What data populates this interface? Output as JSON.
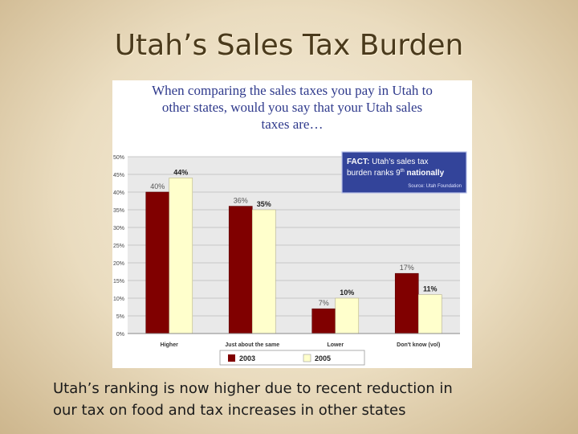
{
  "slide": {
    "title": "Utah’s Sales Tax Burden",
    "caption_lines": [
      "Utah’s ranking is now higher due to recent reduction in",
      "our tax on food and tax increases in other states"
    ]
  },
  "chart_question_lines": [
    "When comparing the sales taxes you pay in Utah to",
    "other states, would you say that your Utah sales",
    "taxes are…"
  ],
  "fact_box": {
    "label": "FACT:",
    "line1_rest": "Utah’s sales tax",
    "line2_pre": "burden ranks 9",
    "line2_sup": "th",
    "line2_post": " nationally",
    "source": "Source: Utah Foundation"
  },
  "colors": {
    "series_2003": "#800000",
    "series_2005": "#ffffcc",
    "fact_box_bg": "#33449a",
    "question_text": "#2f3a8c"
  },
  "chart_data": {
    "type": "bar",
    "categories": [
      "Higher",
      "Just about the same",
      "Lower",
      "Don't know (vol)"
    ],
    "series": [
      {
        "name": "2003",
        "values": [
          40,
          36,
          7,
          17
        ],
        "labels": [
          "40%",
          "36%",
          "7%",
          "17%"
        ]
      },
      {
        "name": "2005",
        "values": [
          44,
          35,
          10,
          11
        ],
        "labels": [
          "44%",
          "35%",
          "10%",
          "11%"
        ]
      }
    ],
    "ylim": [
      0,
      50
    ],
    "y_ticks": [
      "0%",
      "5%",
      "10%",
      "15%",
      "20%",
      "25%",
      "30%",
      "35%",
      "40%",
      "45%",
      "50%"
    ],
    "grid": true,
    "legend_position": "bottom"
  }
}
